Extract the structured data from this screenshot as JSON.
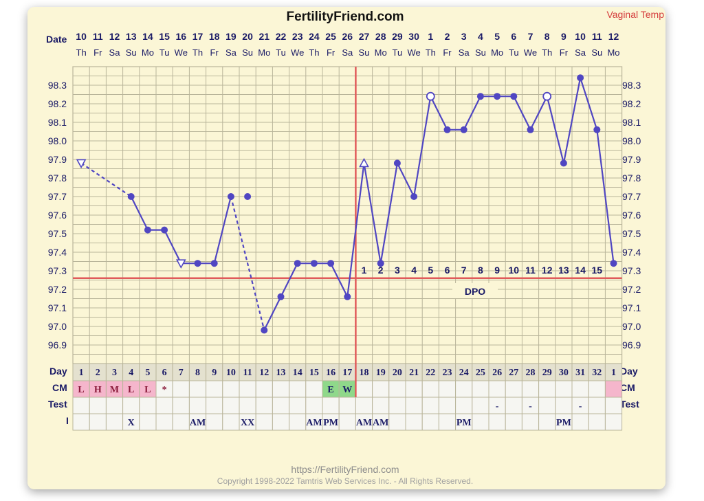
{
  "header": {
    "title": "FertilityFriend.com",
    "corner_label": "Vaginal Temp"
  },
  "labels": {
    "date": "Date",
    "day": "Day",
    "cm": "CM",
    "test": "Test",
    "i": "I",
    "dpo": "DPO"
  },
  "footer": {
    "url": "https://FertilityFriend.com",
    "copyright": "Copyright 1998-2022 Tamtris Web Services Inc. - All Rights Reserved."
  },
  "colors": {
    "line": "#5046c2",
    "grid": "#b9b59a",
    "coverline": "#e05a5a",
    "ovulation_line": "#e05a5a",
    "cm_pink": "#f5b6cc",
    "cm_green": "#8fd88a",
    "text_navy": "#1a1a66"
  },
  "chart_data": {
    "type": "line",
    "title": "FertilityFriend.com",
    "dates": [
      "10",
      "11",
      "12",
      "13",
      "14",
      "15",
      "16",
      "17",
      "18",
      "19",
      "20",
      "21",
      "22",
      "23",
      "24",
      "25",
      "26",
      "27",
      "28",
      "29",
      "30",
      "1",
      "2",
      "3",
      "4",
      "5",
      "6",
      "7",
      "8",
      "9",
      "10",
      "11",
      "12"
    ],
    "weekdays": [
      "Th",
      "Fr",
      "Sa",
      "Su",
      "Mo",
      "Tu",
      "We",
      "Th",
      "Fr",
      "Sa",
      "Su",
      "Mo",
      "Tu",
      "We",
      "Th",
      "Fr",
      "Sa",
      "Su",
      "Mo",
      "Tu",
      "We",
      "Th",
      "Fr",
      "Sa",
      "Su",
      "Mo",
      "Tu",
      "We",
      "Th",
      "Fr",
      "Sa",
      "Su",
      "Mo"
    ],
    "cycle_days": [
      "1",
      "2",
      "3",
      "4",
      "5",
      "6",
      "7",
      "8",
      "9",
      "10",
      "11",
      "12",
      "13",
      "14",
      "15",
      "16",
      "17",
      "18",
      "19",
      "20",
      "21",
      "22",
      "23",
      "24",
      "25",
      "26",
      "27",
      "28",
      "29",
      "30",
      "31",
      "32",
      "1"
    ],
    "yticks": [
      "98.3",
      "98.2",
      "98.1",
      "98.0",
      "97.9",
      "97.8",
      "97.7",
      "97.6",
      "97.5",
      "97.4",
      "97.3",
      "97.2",
      "97.1",
      "97.0",
      "96.9"
    ],
    "ylim": [
      96.8,
      98.4
    ],
    "points": [
      {
        "i": 0,
        "t": 97.88,
        "m": "down"
      },
      {
        "i": 3,
        "t": 97.7,
        "m": "dot"
      },
      {
        "i": 4,
        "t": 97.52,
        "m": "dot"
      },
      {
        "i": 5,
        "t": 97.52,
        "m": "dot"
      },
      {
        "i": 6,
        "t": 97.34,
        "m": "down"
      },
      {
        "i": 7,
        "t": 97.34,
        "m": "dot"
      },
      {
        "i": 8,
        "t": 97.34,
        "m": "dot"
      },
      {
        "i": 9,
        "t": 97.7,
        "m": "dot"
      },
      {
        "i": 10,
        "t": 97.7,
        "m": "dot"
      },
      {
        "i": 11,
        "t": 96.98,
        "m": "dot"
      },
      {
        "i": 12,
        "t": 97.16,
        "m": "dot"
      },
      {
        "i": 13,
        "t": 97.34,
        "m": "dot"
      },
      {
        "i": 14,
        "t": 97.34,
        "m": "dot"
      },
      {
        "i": 15,
        "t": 97.34,
        "m": "dot"
      },
      {
        "i": 16,
        "t": 97.16,
        "m": "dot"
      },
      {
        "i": 17,
        "t": 97.88,
        "m": "up"
      },
      {
        "i": 18,
        "t": 97.34,
        "m": "dot"
      },
      {
        "i": 19,
        "t": 97.88,
        "m": "dot"
      },
      {
        "i": 20,
        "t": 97.7,
        "m": "dot"
      },
      {
        "i": 21,
        "t": 98.24,
        "m": "open"
      },
      {
        "i": 22,
        "t": 98.06,
        "m": "dot"
      },
      {
        "i": 23,
        "t": 98.06,
        "m": "dot"
      },
      {
        "i": 24,
        "t": 98.24,
        "m": "dot"
      },
      {
        "i": 25,
        "t": 98.24,
        "m": "dot"
      },
      {
        "i": 26,
        "t": 98.24,
        "m": "dot"
      },
      {
        "i": 27,
        "t": 98.06,
        "m": "dot"
      },
      {
        "i": 28,
        "t": 98.24,
        "m": "open"
      },
      {
        "i": 29,
        "t": 97.88,
        "m": "dot"
      },
      {
        "i": 30,
        "t": 98.34,
        "m": "dot"
      },
      {
        "i": 31,
        "t": 98.06,
        "m": "dot"
      },
      {
        "i": 32,
        "t": 97.34,
        "m": "dot"
      }
    ],
    "segments": [
      {
        "a": 0,
        "b": 3,
        "style": "dashed"
      },
      {
        "a": 3,
        "b": 4,
        "style": "solid"
      },
      {
        "a": 4,
        "b": 5,
        "style": "solid"
      },
      {
        "a": 5,
        "b": 6,
        "style": "solid"
      },
      {
        "a": 6,
        "b": 7,
        "style": "solid"
      },
      {
        "a": 7,
        "b": 8,
        "style": "solid"
      },
      {
        "a": 8,
        "b": 9,
        "style": "solid"
      },
      {
        "a": 9,
        "b": 11,
        "style": "dashed"
      },
      {
        "a": 11,
        "b": 12,
        "style": "solid"
      },
      {
        "a": 12,
        "b": 13,
        "style": "solid"
      },
      {
        "a": 13,
        "b": 14,
        "style": "solid"
      },
      {
        "a": 14,
        "b": 15,
        "style": "solid"
      },
      {
        "a": 15,
        "b": 16,
        "style": "solid"
      },
      {
        "a": 16,
        "b": 17,
        "style": "solid"
      },
      {
        "a": 17,
        "b": 18,
        "style": "solid"
      },
      {
        "a": 18,
        "b": 19,
        "style": "solid"
      },
      {
        "a": 19,
        "b": 20,
        "style": "solid"
      },
      {
        "a": 20,
        "b": 21,
        "style": "solid"
      },
      {
        "a": 21,
        "b": 22,
        "style": "solid"
      },
      {
        "a": 22,
        "b": 23,
        "style": "solid"
      },
      {
        "a": 23,
        "b": 24,
        "style": "solid"
      },
      {
        "a": 24,
        "b": 25,
        "style": "solid"
      },
      {
        "a": 25,
        "b": 26,
        "style": "solid"
      },
      {
        "a": 26,
        "b": 27,
        "style": "solid"
      },
      {
        "a": 27,
        "b": 28,
        "style": "solid"
      },
      {
        "a": 28,
        "b": 29,
        "style": "solid"
      },
      {
        "a": 29,
        "b": 30,
        "style": "solid"
      },
      {
        "a": 30,
        "b": 31,
        "style": "solid"
      },
      {
        "a": 31,
        "b": 32,
        "style": "solid"
      }
    ],
    "coverline": 97.26,
    "ovulation_day_index": 16,
    "dpo_start_index": 17,
    "dpo_labels": [
      "1",
      "2",
      "3",
      "4",
      "5",
      "6",
      "7",
      "8",
      "9",
      "10",
      "11",
      "12",
      "13",
      "14",
      "15"
    ],
    "rows": {
      "cm": [
        {
          "i": 0,
          "v": "L",
          "bg": "pink"
        },
        {
          "i": 1,
          "v": "H",
          "bg": "pink"
        },
        {
          "i": 2,
          "v": "M",
          "bg": "pink"
        },
        {
          "i": 3,
          "v": "L",
          "bg": "pink"
        },
        {
          "i": 4,
          "v": "L",
          "bg": "pink"
        },
        {
          "i": 5,
          "v": "*",
          "bg": ""
        },
        {
          "i": 15,
          "v": "E",
          "bg": "green"
        },
        {
          "i": 16,
          "v": "W",
          "bg": "green"
        },
        {
          "i": 32,
          "v": "",
          "bg": "pink"
        }
      ],
      "test": [
        {
          "i": 25,
          "v": "-"
        },
        {
          "i": 27,
          "v": "-"
        },
        {
          "i": 30,
          "v": "-"
        }
      ],
      "intercourse": [
        {
          "i": 3,
          "v": "X"
        },
        {
          "i": 7,
          "v": "AM"
        },
        {
          "i": 10,
          "v": "XX"
        },
        {
          "i": 14,
          "v": "AM"
        },
        {
          "i": 15,
          "v": "PM"
        },
        {
          "i": 17,
          "v": "AM"
        },
        {
          "i": 18,
          "v": "AM"
        },
        {
          "i": 23,
          "v": "PM"
        },
        {
          "i": 29,
          "v": "PM"
        }
      ]
    }
  }
}
